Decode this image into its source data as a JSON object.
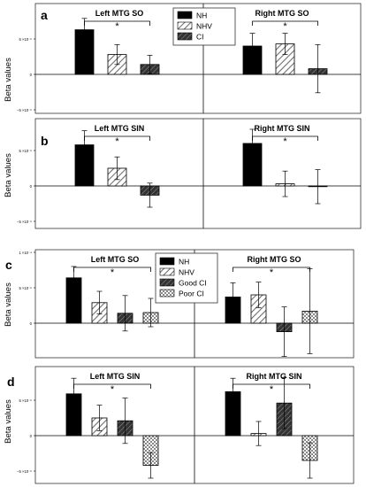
{
  "figure": {
    "panel_letters": [
      "a",
      "b",
      "c",
      "d"
    ],
    "ylabel": "Beta values",
    "legend_top": {
      "placement": "top-center",
      "entries": [
        {
          "label": "NH",
          "pattern": "solid-black"
        },
        {
          "label": "NHV",
          "pattern": "diagonal-hatch"
        },
        {
          "label": "CI",
          "pattern": "diagonal-dark"
        }
      ]
    },
    "legend_bottom": {
      "placement": "top-center",
      "entries": [
        {
          "label": "NH",
          "pattern": "solid-black"
        },
        {
          "label": "NHV",
          "pattern": "diagonal-hatch"
        },
        {
          "label": "Good CI",
          "pattern": "diagonal-dark"
        },
        {
          "label": "Poor CI",
          "pattern": "checker"
        }
      ]
    },
    "significance_mark": "*",
    "tick_labels": {
      "pos": "5 ×10⁻⁵",
      "zero": "0",
      "neg": "−5 ×10⁻⁵",
      "top": "1 ×10⁻⁴"
    }
  },
  "chart_data": [
    {
      "type": "bar",
      "panel": "a",
      "title": "Left MTG SO",
      "ylabel": "Beta values",
      "ylim": [
        -8e-05,
        0.00012
      ],
      "yticks": [
        -5e-05,
        0,
        5e-05,
        0.0001
      ],
      "categories": [
        "NH",
        "NHV",
        "CI"
      ],
      "values": [
        6.3e-05,
        2.8e-05,
        1.4e-05
      ],
      "errors": [
        1.6e-05,
        1.4e-05,
        1.3e-05
      ],
      "significance": {
        "from": 0,
        "to": 2,
        "label": "*"
      }
    },
    {
      "type": "bar",
      "panel": "a",
      "title": "Right MTG SO",
      "ylim": [
        -8e-05,
        0.00012
      ],
      "categories": [
        "NH",
        "NHV",
        "CI"
      ],
      "values": [
        4e-05,
        4.3e-05,
        8e-06
      ],
      "errors": [
        1.8e-05,
        1.5e-05,
        3.4e-05
      ],
      "significance": {
        "from": 0,
        "to": 2,
        "label": "*"
      }
    },
    {
      "type": "bar",
      "panel": "b",
      "title": "Left MTG SIN",
      "ylabel": "Beta values",
      "ylim": [
        -8e-05,
        0.00012
      ],
      "categories": [
        "NH",
        "NHV",
        "CI"
      ],
      "values": [
        5.8e-05,
        2.5e-05,
        -1.3e-05
      ],
      "errors": [
        2e-05,
        1.6e-05,
        1.7e-05
      ],
      "significance": {
        "from": 0,
        "to": 2,
        "label": "*"
      }
    },
    {
      "type": "bar",
      "panel": "b",
      "title": "Right MTG SIN",
      "ylim": [
        -8e-05,
        0.00012
      ],
      "categories": [
        "NH",
        "NHV",
        "CI"
      ],
      "values": [
        6e-05,
        3e-06,
        -1e-06
      ],
      "errors": [
        2e-05,
        1.8e-05,
        2.4e-05
      ],
      "significance": {
        "from": 0,
        "to": 2,
        "label": "*"
      }
    },
    {
      "type": "bar",
      "panel": "c",
      "title": "Left MTG SO",
      "ylabel": "Beta values",
      "ylim": [
        -8e-05,
        0.00012
      ],
      "categories": [
        "NH",
        "NHV",
        "Good CI",
        "Poor CI"
      ],
      "values": [
        6.4e-05,
        2.9e-05,
        1.4e-05,
        1.5e-05
      ],
      "errors": [
        1.6e-05,
        1.6e-05,
        2.5e-05,
        2e-05
      ],
      "significance": {
        "from": 0,
        "to": 3,
        "label": "*"
      }
    },
    {
      "type": "bar",
      "panel": "c",
      "title": "Right MTG SO",
      "ylim": [
        -8e-05,
        0.00012
      ],
      "categories": [
        "NH",
        "NHV",
        "Good CI",
        "Poor CI"
      ],
      "values": [
        3.7e-05,
        4e-05,
        -1.2e-05,
        1.7e-05
      ],
      "errors": [
        2e-05,
        1.8e-05,
        3.5e-05,
        6e-05
      ],
      "significance": {
        "from": 0,
        "to": 3,
        "label": "*"
      }
    },
    {
      "type": "bar",
      "panel": "d",
      "title": "Left MTG SIN",
      "ylabel": "Beta values",
      "ylim": [
        -8e-05,
        0.00012
      ],
      "categories": [
        "NH",
        "NHV",
        "Good CI",
        "Poor CI"
      ],
      "values": [
        5.9e-05,
        2.5e-05,
        2.1e-05,
        -4.2e-05
      ],
      "errors": [
        2.2e-05,
        1.8e-05,
        3.2e-05,
        1.8e-05
      ],
      "significance": {
        "from": 0,
        "to": 3,
        "label": "*"
      }
    },
    {
      "type": "bar",
      "panel": "d",
      "title": "Right MTG SIN",
      "ylim": [
        -8e-05,
        0.00012
      ],
      "categories": [
        "NH",
        "NHV",
        "Good CI",
        "Poor CI"
      ],
      "values": [
        6.2e-05,
        3e-06,
        4.6e-05,
        -3.5e-05
      ],
      "errors": [
        1.9e-05,
        1.7e-05,
        3.6e-05,
        2.5e-05
      ],
      "significance": {
        "from": 0,
        "to": 3,
        "label": "*"
      }
    }
  ]
}
